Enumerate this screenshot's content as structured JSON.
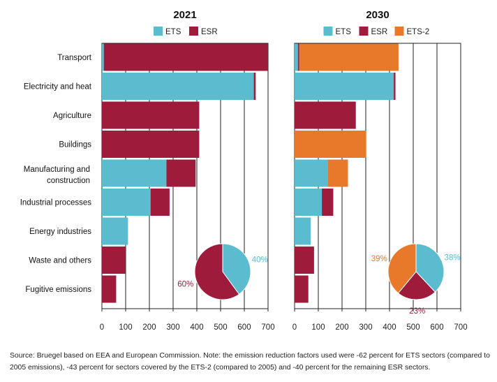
{
  "chart_data": [
    {
      "type": "bar",
      "orientation": "horizontal",
      "stacked": true,
      "title": "2021",
      "categories": [
        "Transport",
        "Electricity and heat",
        "Agriculture",
        "Buildings",
        "Manufacturing and construction",
        "Industrial processes",
        "Energy industries",
        "Waste and others",
        "Fugitive emissions"
      ],
      "series": [
        {
          "name": "ETS",
          "color": "#5bbccf",
          "values": [
            8,
            640,
            0,
            0,
            272,
            205,
            110,
            0,
            0
          ]
        },
        {
          "name": "ESR",
          "color": "#9e1b3c",
          "values": [
            692,
            8,
            410,
            410,
            123,
            80,
            0,
            100,
            60
          ]
        }
      ],
      "xlim": [
        0,
        700
      ],
      "xticks": [
        "0",
        "100",
        "200",
        "300",
        "400",
        "500",
        "600",
        "700"
      ],
      "grid": "vertical",
      "legend": "top",
      "pie": {
        "slices": [
          {
            "name": "ETS",
            "label": "40%",
            "value": 40,
            "color": "#5bbccf"
          },
          {
            "name": "ESR",
            "label": "60%",
            "value": 60,
            "color": "#9e1b3c"
          }
        ]
      }
    },
    {
      "type": "bar",
      "orientation": "horizontal",
      "stacked": true,
      "title": "2030",
      "categories": [
        "Transport",
        "Electricity and heat",
        "Agriculture",
        "Buildings",
        "Manufacturing and construction",
        "Industrial processes",
        "Energy industries",
        "Waste and others",
        "Fugitive emissions"
      ],
      "series": [
        {
          "name": "ETS",
          "color": "#5bbccf",
          "values": [
            14,
            418,
            0,
            0,
            140,
            115,
            68,
            0,
            0
          ]
        },
        {
          "name": "ESR",
          "color": "#9e1b3c",
          "values": [
            6,
            7,
            258,
            0,
            0,
            48,
            0,
            82,
            58
          ]
        },
        {
          "name": "ETS-2",
          "color": "#e8792a",
          "values": [
            418,
            0,
            0,
            302,
            85,
            0,
            0,
            0,
            0
          ]
        }
      ],
      "xlim": [
        0,
        700
      ],
      "xticks": [
        "0",
        "100",
        "200",
        "300",
        "400",
        "500",
        "600",
        "700"
      ],
      "grid": "vertical",
      "legend": "top",
      "pie": {
        "slices": [
          {
            "name": "ETS",
            "label": "38%",
            "value": 38,
            "color": "#5bbccf"
          },
          {
            "name": "ESR",
            "label": "23%",
            "value": 23,
            "color": "#9e1b3c"
          },
          {
            "name": "ETS-2",
            "label": "39%",
            "value": 39,
            "color": "#e8792a"
          }
        ]
      }
    }
  ],
  "source_note": "Source: Bruegel based on EEA and European Commission. Note: the emission reduction factors used were -62 percent for ETS sectors (compared to 2005 emissions), -43 percent for sectors covered by the ETS-2 (compared to 2005) and -40 percent for the remaining ESR sectors."
}
